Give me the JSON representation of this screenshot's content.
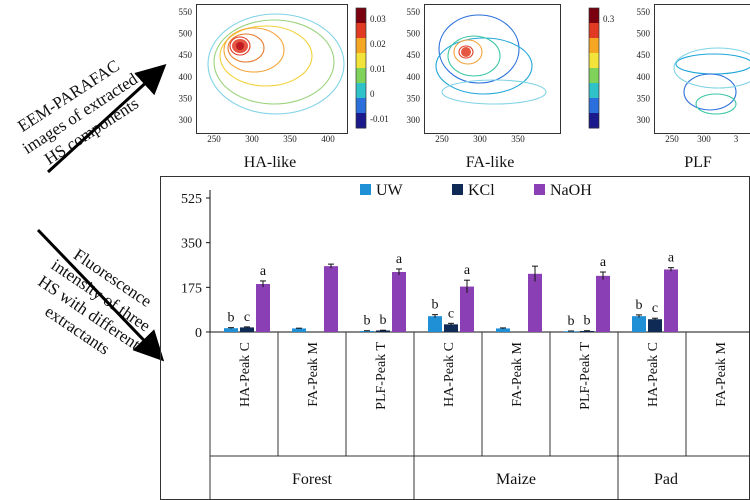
{
  "flow": {
    "top_lines": [
      "EEM-PARAFAC",
      "images of extracted",
      "HS components"
    ],
    "bottom_lines": [
      "Fluorescence",
      "intensity of three",
      "HS with different",
      "extractants"
    ]
  },
  "eem_panels": [
    {
      "caption": "HA-like",
      "y_ticks": [
        "550",
        "500",
        "450",
        "400",
        "350",
        "300"
      ],
      "x_ticks": [
        "250",
        "300",
        "350",
        "400"
      ],
      "scale_ticks": [
        "0.03",
        "0.02",
        "0.01",
        "0",
        "-0.01"
      ]
    },
    {
      "caption": "FA-like",
      "y_ticks": [
        "550",
        "500",
        "450",
        "400",
        "350",
        "300"
      ],
      "x_ticks": [
        "250",
        "300",
        "350"
      ],
      "scale_ticks": [
        "0.3"
      ]
    },
    {
      "caption": "PLF",
      "y_ticks": [
        "550",
        "500",
        "450",
        "400",
        "350",
        "300"
      ],
      "x_ticks": [
        "250",
        "300",
        "3"
      ],
      "scale_ticks": []
    }
  ],
  "chart_data": {
    "type": "bar",
    "ylim": [
      0,
      525
    ],
    "yticks": [
      0,
      175,
      350,
      525
    ],
    "legend": [
      "UW",
      "KCl",
      "NaOH"
    ],
    "colors": {
      "UW": "#1f8fd6",
      "KCl": "#0f2a55",
      "NaOH": "#8a3fb5"
    },
    "categories": [
      "HA-Peak C",
      "FA-Peak M",
      "PLF-Peak T",
      "HA-Peak C",
      "FA-Peak M",
      "PLF-Peak T",
      "HA-Peak C",
      "FA-Peak M"
    ],
    "groups": [
      "Forest",
      "Maize",
      "Pad"
    ],
    "series": [
      {
        "name": "UW",
        "values": [
          15,
          14,
          4,
          62,
          14,
          3,
          62,
          null
        ]
      },
      {
        "name": "KCl",
        "values": [
          18,
          null,
          6,
          30,
          null,
          4,
          50,
          null
        ]
      },
      {
        "name": "NaOH",
        "values": [
          188,
          258,
          235,
          178,
          228,
          220,
          245,
          null
        ]
      }
    ],
    "errors": [
      [
        2,
        1,
        1,
        6,
        2,
        1,
        5,
        null
      ],
      [
        2,
        null,
        1,
        4,
        null,
        1,
        4,
        null
      ],
      [
        12,
        8,
        12,
        25,
        30,
        15,
        7,
        null
      ]
    ],
    "letters": [
      [
        "b",
        null,
        "b",
        "b",
        null,
        "b",
        "b",
        null
      ],
      [
        "c",
        null,
        "b",
        "c",
        null,
        "b",
        "c",
        null
      ],
      [
        "a",
        null,
        "a",
        "a",
        null,
        "a",
        "a",
        null
      ]
    ]
  }
}
